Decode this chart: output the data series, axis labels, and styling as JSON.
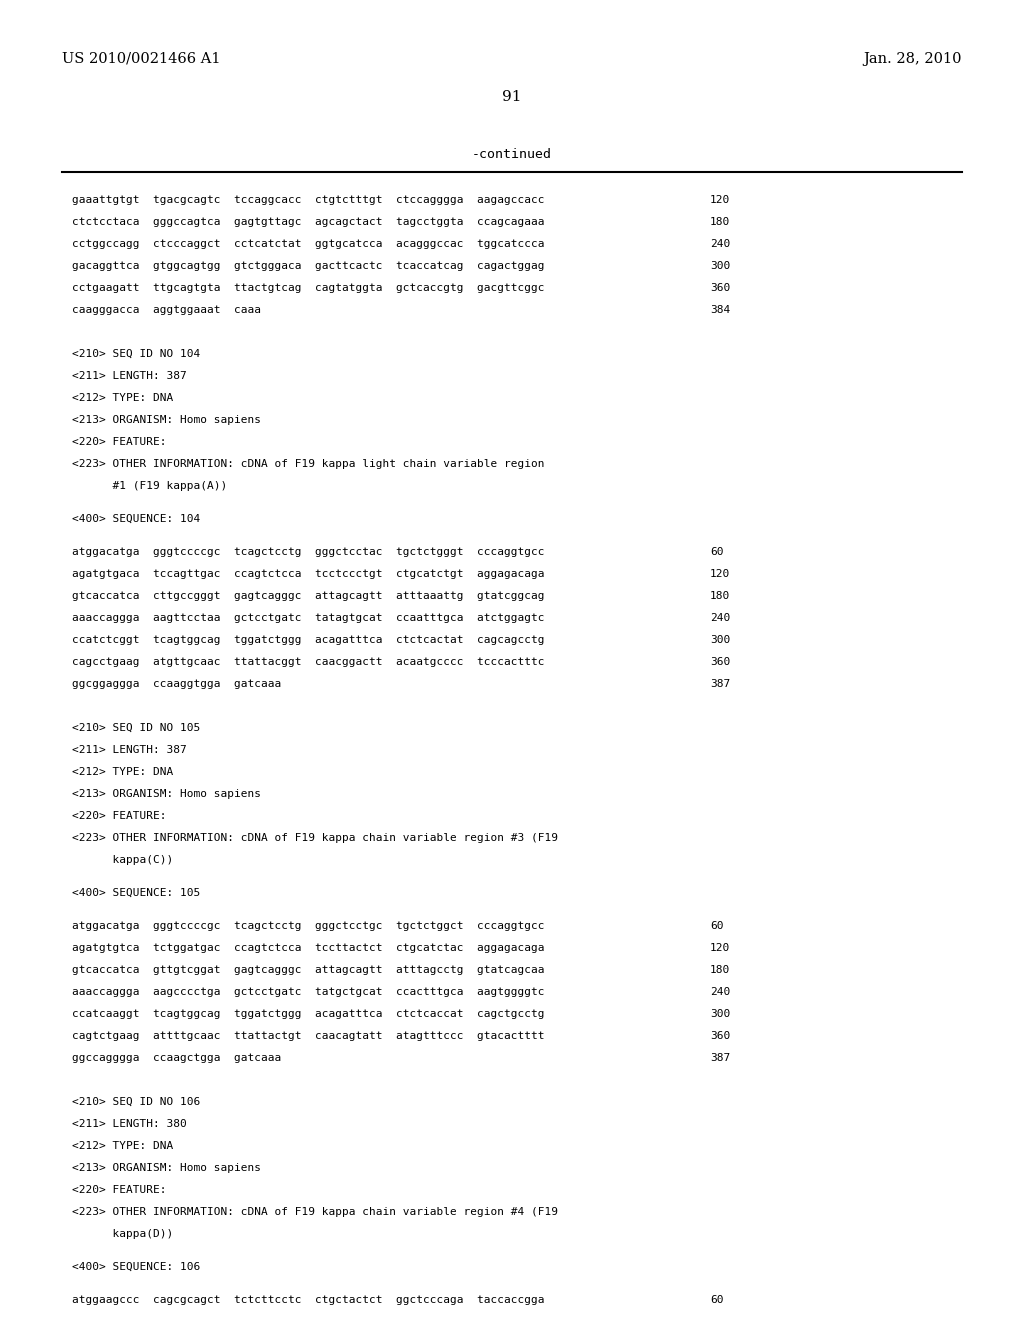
{
  "header_left": "US 2010/0021466 A1",
  "header_right": "Jan. 28, 2010",
  "page_number": "91",
  "continued_label": "-continued",
  "background_color": "#ffffff",
  "text_color": "#000000",
  "lines": [
    {
      "text": "gaaattgtgt  tgacgcagtc  tccaggcacc  ctgtctttgt  ctccagggga  aagagccacc",
      "num": "120",
      "type": "seq"
    },
    {
      "text": "ctctcctaca  gggccagtca  gagtgttagc  agcagctact  tagcctggta  ccagcagaaa",
      "num": "180",
      "type": "seq"
    },
    {
      "text": "cctggccagg  ctcccaggct  cctcatctat  ggtgcatcca  acagggccac  tggcatccca",
      "num": "240",
      "type": "seq"
    },
    {
      "text": "gacaggttca  gtggcagtgg  gtctgggaca  gacttcactc  tcaccatcag  cagactggag",
      "num": "300",
      "type": "seq"
    },
    {
      "text": "cctgaagatt  ttgcagtgta  ttactgtcag  cagtatggta  gctcaccgtg  gacgttcggc",
      "num": "360",
      "type": "seq"
    },
    {
      "text": "caagggacca  aggtggaaat  caaa",
      "num": "384",
      "type": "seq"
    },
    {
      "text": "",
      "type": "blank"
    },
    {
      "text": "",
      "type": "blank"
    },
    {
      "text": "<210> SEQ ID NO 104",
      "type": "meta"
    },
    {
      "text": "<211> LENGTH: 387",
      "type": "meta"
    },
    {
      "text": "<212> TYPE: DNA",
      "type": "meta"
    },
    {
      "text": "<213> ORGANISM: Homo sapiens",
      "type": "meta"
    },
    {
      "text": "<220> FEATURE:",
      "type": "meta"
    },
    {
      "text": "<223> OTHER INFORMATION: cDNA of F19 kappa light chain variable region",
      "type": "meta"
    },
    {
      "text": "      #1 (F19 kappa(A))",
      "type": "meta"
    },
    {
      "text": "",
      "type": "blank"
    },
    {
      "text": "<400> SEQUENCE: 104",
      "type": "meta"
    },
    {
      "text": "",
      "type": "blank"
    },
    {
      "text": "atggacatga  gggtccccgc  tcagctcctg  gggctcctac  tgctctgggt  cccaggtgcc",
      "num": "60",
      "type": "seq"
    },
    {
      "text": "agatgtgaca  tccagttgac  ccagtctcca  tcctccctgt  ctgcatctgt  aggagacaga",
      "num": "120",
      "type": "seq"
    },
    {
      "text": "gtcaccatca  cttgccgggt  gagtcagggc  attagcagtt  atttaaattg  gtatcggcag",
      "num": "180",
      "type": "seq"
    },
    {
      "text": "aaaccaggga  aagttcctaa  gctcctgatc  tatagtgcat  ccaatttgca  atctggagtc",
      "num": "240",
      "type": "seq"
    },
    {
      "text": "ccatctcggt  tcagtggcag  tggatctggg  acagatttca  ctctcactat  cagcagcctg",
      "num": "300",
      "type": "seq"
    },
    {
      "text": "cagcctgaag  atgttgcaac  ttattacggt  caacggactt  acaatgcccc  tcccactttc",
      "num": "360",
      "type": "seq"
    },
    {
      "text": "ggcggaggga  ccaaggtgga  gatcaaa",
      "num": "387",
      "type": "seq"
    },
    {
      "text": "",
      "type": "blank"
    },
    {
      "text": "",
      "type": "blank"
    },
    {
      "text": "<210> SEQ ID NO 105",
      "type": "meta"
    },
    {
      "text": "<211> LENGTH: 387",
      "type": "meta"
    },
    {
      "text": "<212> TYPE: DNA",
      "type": "meta"
    },
    {
      "text": "<213> ORGANISM: Homo sapiens",
      "type": "meta"
    },
    {
      "text": "<220> FEATURE:",
      "type": "meta"
    },
    {
      "text": "<223> OTHER INFORMATION: cDNA of F19 kappa chain variable region #3 (F19",
      "type": "meta"
    },
    {
      "text": "      kappa(C))",
      "type": "meta"
    },
    {
      "text": "",
      "type": "blank"
    },
    {
      "text": "<400> SEQUENCE: 105",
      "type": "meta"
    },
    {
      "text": "",
      "type": "blank"
    },
    {
      "text": "atggacatga  gggtccccgc  tcagctcctg  gggctcctgc  tgctctggct  cccaggtgcc",
      "num": "60",
      "type": "seq"
    },
    {
      "text": "agatgtgtca  tctggatgac  ccagtctcca  tccttactct  ctgcatctac  aggagacaga",
      "num": "120",
      "type": "seq"
    },
    {
      "text": "gtcaccatca  gttgtcggat  gagtcagggc  attagcagtt  atttagcctg  gtatcagcaa",
      "num": "180",
      "type": "seq"
    },
    {
      "text": "aaaccaggga  aagcccctga  gctcctgatc  tatgctgcat  ccactttgca  aagtggggtc",
      "num": "240",
      "type": "seq"
    },
    {
      "text": "ccatcaaggt  tcagtggcag  tggatctggg  acagatttca  ctctcaccat  cagctgcctg",
      "num": "300",
      "type": "seq"
    },
    {
      "text": "cagtctgaag  attttgcaac  ttattactgt  caacagtatt  atagtttccc  gtacactttt",
      "num": "360",
      "type": "seq"
    },
    {
      "text": "ggccagggga  ccaagctgga  gatcaaa",
      "num": "387",
      "type": "seq"
    },
    {
      "text": "",
      "type": "blank"
    },
    {
      "text": "",
      "type": "blank"
    },
    {
      "text": "<210> SEQ ID NO 106",
      "type": "meta"
    },
    {
      "text": "<211> LENGTH: 380",
      "type": "meta"
    },
    {
      "text": "<212> TYPE: DNA",
      "type": "meta"
    },
    {
      "text": "<213> ORGANISM: Homo sapiens",
      "type": "meta"
    },
    {
      "text": "<220> FEATURE:",
      "type": "meta"
    },
    {
      "text": "<223> OTHER INFORMATION: cDNA of F19 kappa chain variable region #4 (F19",
      "type": "meta"
    },
    {
      "text": "      kappa(D))",
      "type": "meta"
    },
    {
      "text": "",
      "type": "blank"
    },
    {
      "text": "<400> SEQUENCE: 106",
      "type": "meta"
    },
    {
      "text": "",
      "type": "blank"
    },
    {
      "text": "atggaagccc  cagcgcagct  tctcttcctc  ctgctactct  ggctcccaga  taccaccgga",
      "num": "60",
      "type": "seq"
    }
  ]
}
